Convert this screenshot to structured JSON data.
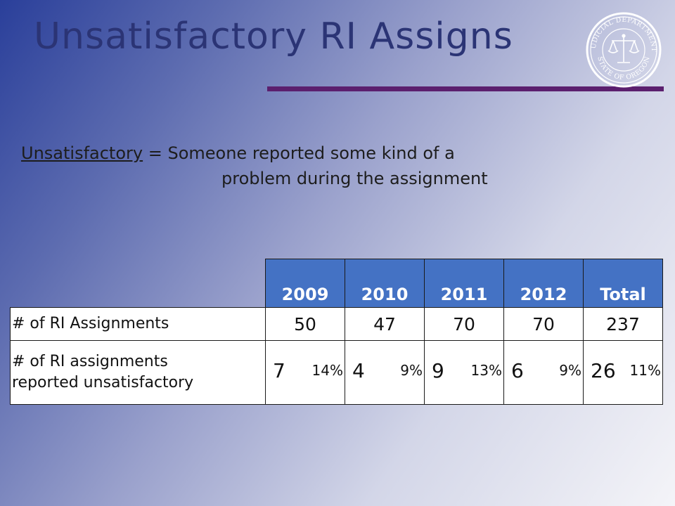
{
  "title": "Unsatisfactory RI Assigns",
  "definition": {
    "term": "Unsatisfactory",
    "equals": " = Someone reported some kind of a",
    "line2": "problem during the assignment"
  },
  "seal": {
    "top_text": "JUDICIAL DEPARTMENT",
    "bottom_text": "STATE OF OREGON",
    "icon": "scales-of-justice-icon"
  },
  "table": {
    "columns": [
      "2009",
      "2010",
      "2011",
      "2012",
      "Total"
    ],
    "rows": [
      {
        "label": "# of RI Assignments",
        "values": [
          "50",
          "47",
          "70",
          "70",
          "237"
        ]
      },
      {
        "label_line1": "# of RI assignments",
        "label_line2": "reported unsatisfactory",
        "cells": [
          {
            "count": "7",
            "percent": "14%"
          },
          {
            "count": "4",
            "percent": "9%"
          },
          {
            "count": "9",
            "percent": "13%"
          },
          {
            "count": "6",
            "percent": "9%"
          },
          {
            "count": "26",
            "percent": "11%"
          }
        ]
      }
    ]
  },
  "colors": {
    "title": "#2b3475",
    "rule": "#5b1f6e",
    "header_fill": "#4472c4"
  }
}
